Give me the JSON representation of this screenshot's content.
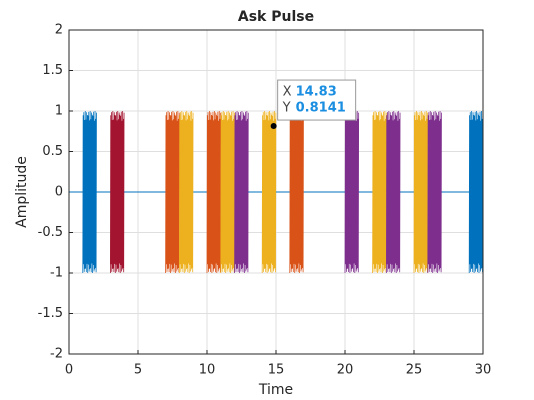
{
  "chart_data": {
    "type": "bursts",
    "title": "Ask Pulse",
    "xlabel": "Time",
    "ylabel": "Amplitude",
    "xlim": [
      0,
      30
    ],
    "ylim": [
      -2,
      2
    ],
    "xticks": [
      0,
      5,
      10,
      15,
      20,
      25,
      30
    ],
    "yticks": [
      -2,
      -1.5,
      -1,
      -0.5,
      0,
      0.5,
      1,
      1.5,
      2
    ],
    "grid": true,
    "baseline": {
      "x": [
        0,
        30
      ],
      "values": [
        0,
        0
      ],
      "color": "#0072BD"
    },
    "bursts": [
      {
        "start": 1,
        "end": 2,
        "amplitude": 1,
        "color": "#0072BD"
      },
      {
        "start": 3,
        "end": 4,
        "amplitude": 1,
        "color": "#A2142F"
      },
      {
        "start": 7,
        "end": 8,
        "amplitude": 1,
        "color": "#D95319"
      },
      {
        "start": 8,
        "end": 9,
        "amplitude": 1,
        "color": "#EDB120"
      },
      {
        "start": 10,
        "end": 11,
        "amplitude": 1,
        "color": "#D95319"
      },
      {
        "start": 11,
        "end": 12,
        "amplitude": 1,
        "color": "#EDB120"
      },
      {
        "start": 12,
        "end": 13,
        "amplitude": 1,
        "color": "#7E2F8E"
      },
      {
        "start": 14,
        "end": 15,
        "amplitude": 1,
        "color": "#EDB120"
      },
      {
        "start": 16,
        "end": 17,
        "amplitude": 1,
        "color": "#D95319"
      },
      {
        "start": 20,
        "end": 21,
        "amplitude": 1,
        "color": "#7E2F8E"
      },
      {
        "start": 22,
        "end": 23,
        "amplitude": 1,
        "color": "#EDB120"
      },
      {
        "start": 23,
        "end": 24,
        "amplitude": 1,
        "color": "#7E2F8E"
      },
      {
        "start": 25,
        "end": 26,
        "amplitude": 1,
        "color": "#EDB120"
      },
      {
        "start": 26,
        "end": 27,
        "amplitude": 1,
        "color": "#7E2F8E"
      },
      {
        "start": 29,
        "end": 30,
        "amplitude": 1,
        "color": "#0072BD"
      }
    ],
    "datatip": {
      "x_label": "X",
      "x": 14.83,
      "y_label": "Y",
      "y": 0.8141
    }
  }
}
